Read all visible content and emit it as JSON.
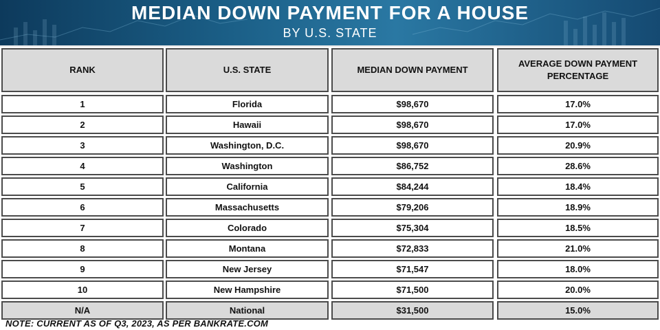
{
  "header": {
    "title": "MEDIAN DOWN PAYMENT FOR A HOUSE",
    "subtitle": "BY U.S. STATE"
  },
  "colors": {
    "header_dark": "#0d3a5c",
    "header_light": "#2a78a3",
    "cell_border": "#4a4a4a",
    "header_cell_bg": "#dadada",
    "national_row_bg": "#dadada"
  },
  "chart_data": {
    "type": "table",
    "columns": [
      "RANK",
      "U.S. STATE",
      "MEDIAN DOWN PAYMENT",
      "AVERAGE DOWN PAYMENT PERCENTAGE"
    ],
    "rows": [
      [
        "1",
        "Florida",
        "$98,670",
        "17.0%"
      ],
      [
        "2",
        "Hawaii",
        "$98,670",
        "17.0%"
      ],
      [
        "3",
        "Washington, D.C.",
        "$98,670",
        "20.9%"
      ],
      [
        "4",
        "Washington",
        "$86,752",
        "28.6%"
      ],
      [
        "5",
        "California",
        "$84,244",
        "18.4%"
      ],
      [
        "6",
        "Massachusetts",
        "$79,206",
        "18.9%"
      ],
      [
        "7",
        "Colorado",
        "$75,304",
        "18.5%"
      ],
      [
        "8",
        "Montana",
        "$72,833",
        "21.0%"
      ],
      [
        "9",
        "New Jersey",
        "$71,547",
        "18.0%"
      ],
      [
        "10",
        "New Hampshire",
        "$71,500",
        "20.0%"
      ]
    ],
    "national_row": [
      "N/A",
      "National",
      "$31,500",
      "15.0%"
    ]
  },
  "note": "NOTE: CURRENT AS OF Q3, 2023, AS PER BANKRATE.COM"
}
